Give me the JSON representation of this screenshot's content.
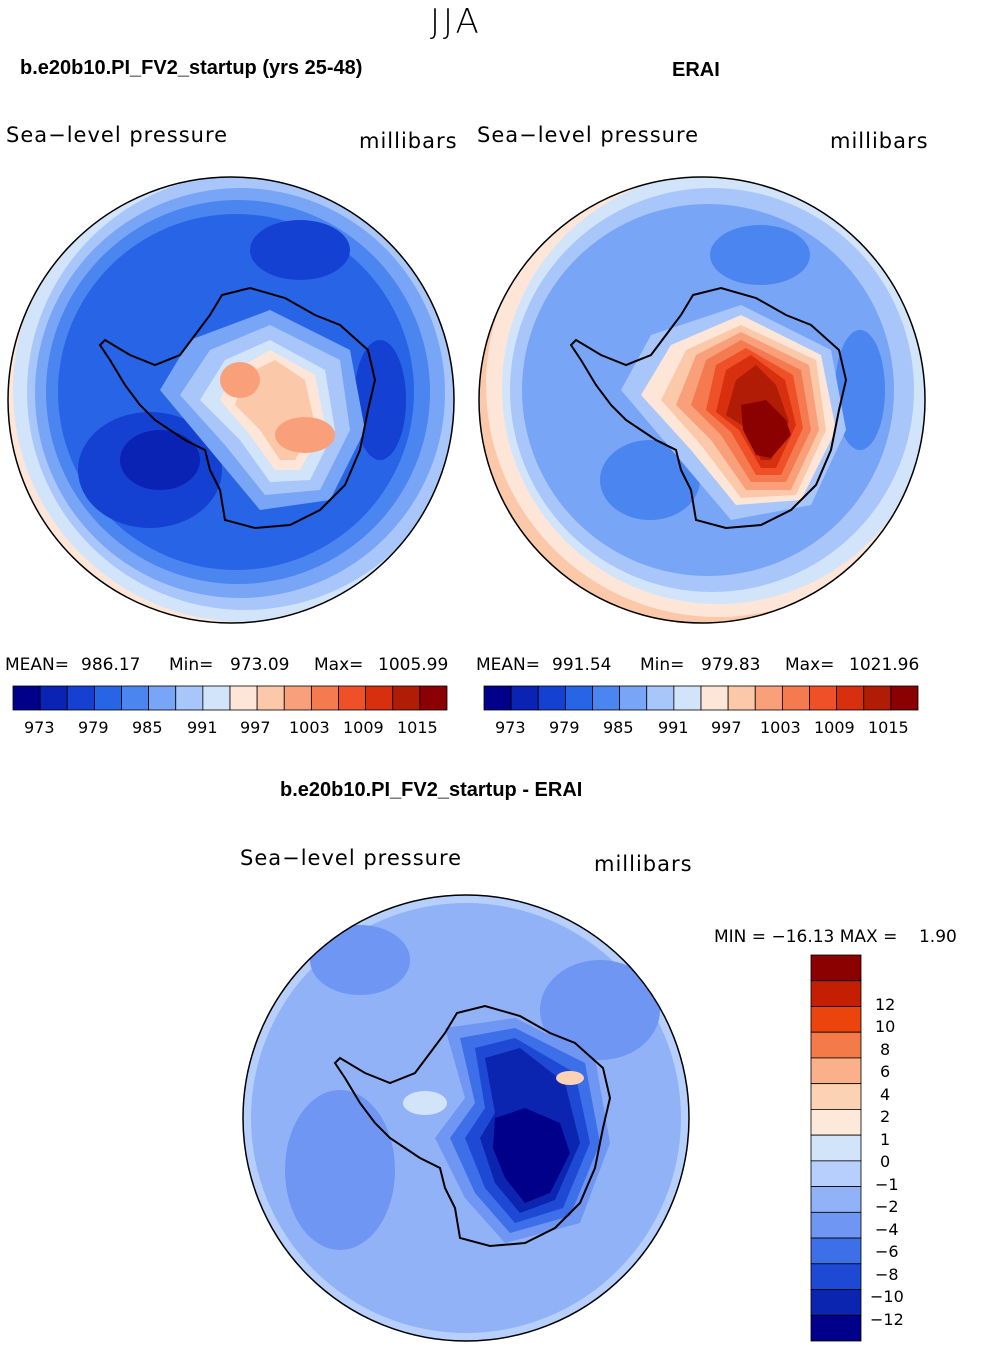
{
  "figure": {
    "season": "JJA",
    "variable": "Sea−level pressure",
    "units": "millibars"
  },
  "panels": [
    {
      "title": "b.e20b10.PI_FV2_startup (yrs 25-48)",
      "mean_label": "MEAN=",
      "mean": "986.17",
      "min_label": "Min=",
      "min": "973.09",
      "max_label": "Max=",
      "max": "1005.99"
    },
    {
      "title": "ERAI",
      "mean_label": "MEAN=",
      "mean": "991.54",
      "min_label": "Min=",
      "min": "979.83",
      "max_label": "Max=",
      "max": "1021.96"
    }
  ],
  "difference": {
    "title": "b.e20b10.PI_FV2_startup - ERAI",
    "minmax_text": "MIN = −16.13 MAX =    1.90"
  },
  "colorbar_abs": {
    "colors": [
      "#00008b",
      "#0a23b4",
      "#1441d2",
      "#2864e6",
      "#4b85f0",
      "#78a5f5",
      "#a8c6fa",
      "#d2e4fa",
      "#fde6d8",
      "#fcc8aa",
      "#f9a07a",
      "#f57a50",
      "#ef5028",
      "#d8300e",
      "#b01c06",
      "#8b0000"
    ],
    "tick_labels": [
      "973",
      "979",
      "985",
      "991",
      "997",
      "1003",
      "1009",
      "1015"
    ]
  },
  "colorbar_diff": {
    "colors_top_to_bottom": [
      "#8b0000",
      "#c41e03",
      "#eb440d",
      "#f57a4a",
      "#fab088",
      "#fcd2b4",
      "#fde9da",
      "#d2e4fa",
      "#b6cffc",
      "#92b2f7",
      "#6e96f2",
      "#3c6fe8",
      "#1e49d4",
      "#0c25b0",
      "#00008b"
    ],
    "tick_labels_top_to_bottom": [
      "12",
      "10",
      "8",
      "6",
      "4",
      "2",
      "1",
      "0",
      "−1",
      "−2",
      "−4",
      "−6",
      "−8",
      "−10",
      "−12"
    ]
  }
}
